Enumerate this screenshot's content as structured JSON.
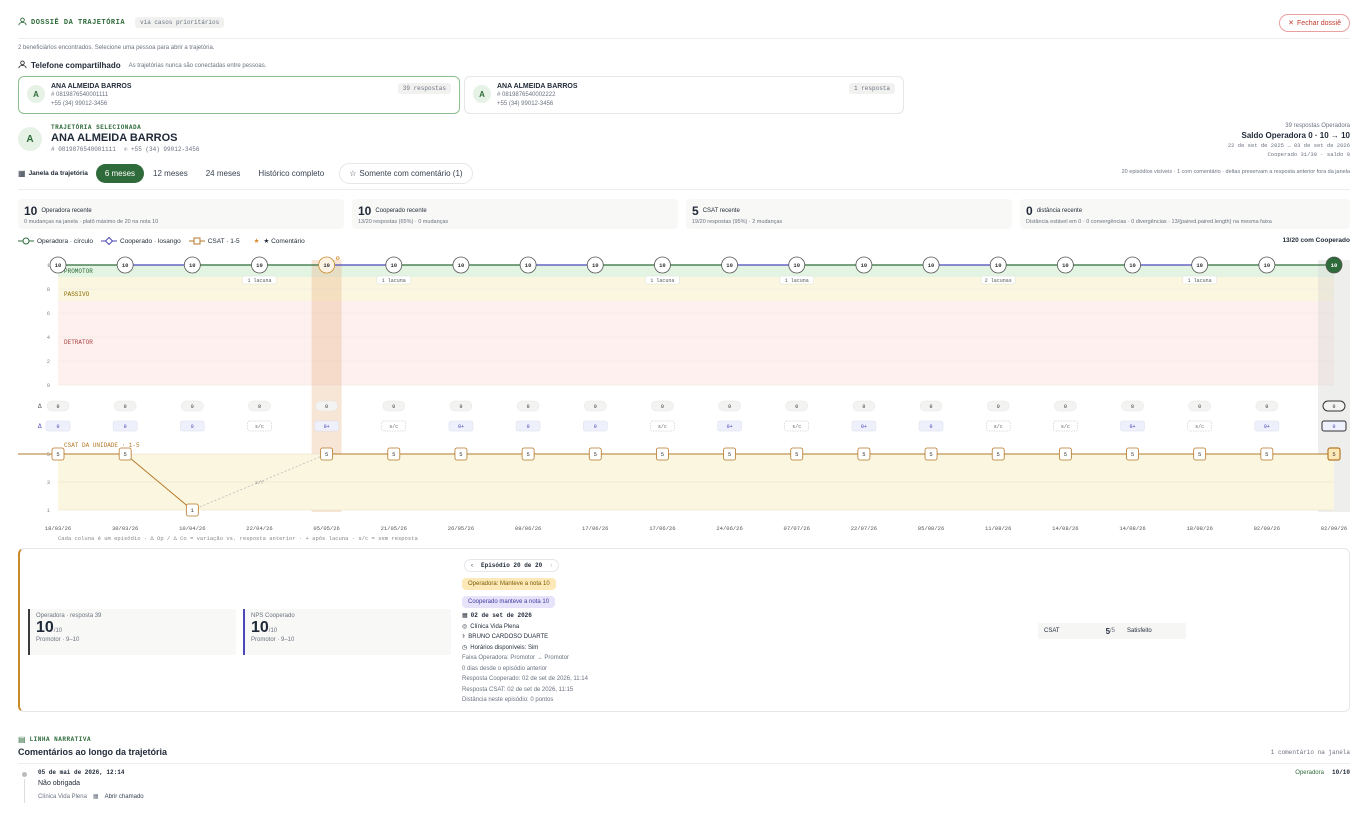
{
  "header": {
    "title": "DOSSIÊ DA TRAJETÓRIA",
    "chip": "via casos prioritários",
    "close": "Fechar dossiê"
  },
  "intro": "2 beneficiários encontrados. Selecione uma pessoa para abrir a trajetória.",
  "shared": {
    "title": "Telefone compartilhado",
    "note": "As trajetórias nunca são conectadas entre pessoas."
  },
  "people": [
    {
      "initial": "A",
      "name": "ANA ALMEIDA BARROS",
      "id": "0819876540001111",
      "phone": "+55 (34) 99012-3456",
      "count": "39 respostas"
    },
    {
      "initial": "A",
      "name": "ANA ALMEIDA BARROS",
      "id": "0819876540002222",
      "phone": "+55 (34) 99012-3456",
      "count": "1 resposta"
    }
  ],
  "selected": {
    "label": "TRAJETÓRIA SELECIONADA",
    "name": "ANA ALMEIDA BARROS",
    "id": "0819876540001111",
    "phone": "+55 (34) 99012-3456",
    "right1": "39 respostas Operadora",
    "right2": "Saldo Operadora 0 · 10 → 10",
    "right3": "22 de set de 2025 → 03 de set de 2026",
    "right4": "Cooperado 31/39 · saldo 0"
  },
  "window": {
    "label": "Janela da trajetória",
    "options": [
      "6 meses",
      "12 meses",
      "24 meses",
      "Histórico completo"
    ],
    "comment_filter": "Somente com comentário (1)",
    "note": "20 episódios visíveis · 1 com comentário · deltas preservam a resposta anterior fora da janela"
  },
  "stats": [
    {
      "value": "10",
      "title": "Operadora recente",
      "sub": "0 mudanças na janela · platô máximo de 20 na nota 10"
    },
    {
      "value": "10",
      "title": "Cooperado recente",
      "sub": "13/20 respostas (65%) · 0 mudanças"
    },
    {
      "value": "5",
      "title": "CSAT recente",
      "sub": "19/20 respostas (95%) · 2 mudanças"
    },
    {
      "value": "0",
      "title": "distância recente",
      "sub": "Distância estável em 0 · 0 convergências · 0 divergências · 13/{paired.paired.length} na mesma faixa"
    }
  ],
  "legend": {
    "op": "Operadora · círculo",
    "co": "Cooperado · losango",
    "csat": "CSAT · 1-5",
    "comment": "★ Comentário",
    "right": "13/20 com Cooperado"
  },
  "chart_data": {
    "type": "line",
    "dates": [
      "18/03/26",
      "30/03/26",
      "10/04/26",
      "22/04/26",
      "05/05/26",
      "21/05/26",
      "26/05/26",
      "09/06/26",
      "17/06/26",
      "17/06/26",
      "24/06/26",
      "07/07/26",
      "22/07/26",
      "05/08/26",
      "11/08/26",
      "14/08/26",
      "14/08/26",
      "18/08/26",
      "02/09/26",
      "02/09/26"
    ],
    "nps_yticks": [
      "1",
      "8",
      "6",
      "4",
      "2",
      "0"
    ],
    "bands": [
      "PROMOTOR",
      "PASSIVO",
      "DETRATOR"
    ],
    "operadora": [
      10,
      10,
      10,
      10,
      10,
      10,
      10,
      10,
      10,
      10,
      10,
      10,
      10,
      10,
      10,
      10,
      10,
      10,
      10,
      10
    ],
    "gaps": {
      "3": "1 lacuna",
      "5": "1 lacuna",
      "9": "1 lacuna",
      "11": "1 lacuna",
      "14": "2 lacunas",
      "17": "1 lacuna"
    },
    "delta_op": [
      "0",
      "0",
      "0",
      "0",
      "0",
      "0",
      "0",
      "0",
      "0",
      "0",
      "0",
      "0",
      "0",
      "0",
      "0",
      "0",
      "0",
      "0",
      "0",
      "0"
    ],
    "delta_co": [
      "0",
      "0",
      "0",
      "s/c",
      "0+",
      "s/c",
      "0+",
      "0",
      "0",
      "s/c",
      "0+",
      "s/c",
      "0+",
      "0",
      "s/c",
      "s/c",
      "0+",
      "s/c",
      "0+",
      "0"
    ],
    "csat_label": "CSAT DA UNIDADE · 1-5",
    "csat_yticks": [
      "5",
      "3",
      "1"
    ],
    "csat": [
      5,
      5,
      1,
      null,
      5,
      5,
      5,
      5,
      5,
      5,
      5,
      5,
      5,
      5,
      5,
      5,
      5,
      5,
      5,
      5
    ],
    "gap_label": "s/r",
    "footnote": "Cada coluna é um episódio · Δ Op / Δ Co = variação vs. resposta anterior · + após lacuna · s/c = sem resposta"
  },
  "episode": {
    "nav": "Episódio 20 de 20",
    "badge_op": "Operadora: Manteve a nota 10",
    "badge_co": "Cooperado manteve a nota 10",
    "date": "02 de set de 2026",
    "clinic": "Clínica Vida Plena",
    "doctor": "BRUNO CARDOSO DUARTE",
    "avail": "Horários disponíveis: Sim",
    "faixa": "Faixa Operadora: Promotor → Promotor",
    "days": "0 dias desde o episódio anterior",
    "resp_co": "Resposta Cooperado: 02 de set de 2026, 11:14",
    "resp_csat": "Resposta CSAT: 02 de set de 2026, 11:15",
    "dist": "Distância neste episódio: 0 pontos",
    "op": {
      "label": "Operadora · resposta 39",
      "value": "10",
      "of": "/10",
      "band": "Promotor · 9–10"
    },
    "co": {
      "label": "NPS Cooperado",
      "value": "10",
      "of": "/10",
      "band": "Promotor · 9–10"
    },
    "csat": {
      "label": "CSAT",
      "value": "5",
      "of": "/5",
      "text": "Satisfeito"
    }
  },
  "narrative": {
    "label": "LINHA NARRATIVA",
    "title": "Comentários ao longo da trajetória",
    "count": "1 comentário na janela",
    "items": [
      {
        "date": "05 de mai de 2026, 12:14",
        "text": "Não obrigada",
        "clinic": "Clínica Vida Plena",
        "action": "Abrir chamado",
        "source": "Operadora",
        "score": "10/10"
      }
    ]
  }
}
